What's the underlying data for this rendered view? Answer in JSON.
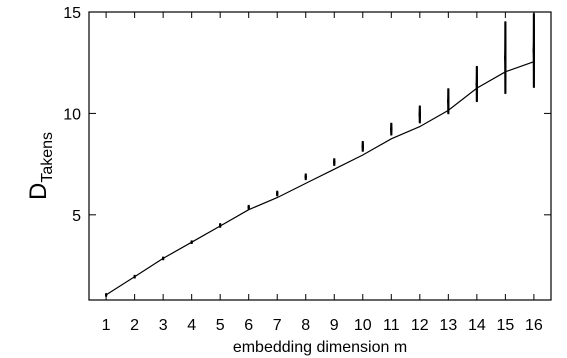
{
  "chart_data": {
    "type": "scatter",
    "xlabel": "embedding dimension m",
    "ylabel_main": "D",
    "ylabel_sub": "Takens",
    "xlim": [
      0.4,
      16.6
    ],
    "ylim": [
      0.8,
      15
    ],
    "x_ticks": [
      1,
      2,
      3,
      4,
      5,
      6,
      7,
      8,
      9,
      10,
      11,
      12,
      13,
      14,
      15,
      16
    ],
    "y_ticks": [
      5,
      10,
      15
    ],
    "grid": false,
    "line": {
      "x": [
        1,
        2,
        3,
        4,
        5,
        6,
        7,
        8,
        9,
        10,
        11,
        12,
        13,
        14,
        15,
        16
      ],
      "y": [
        1.05,
        1.95,
        2.85,
        3.65,
        4.45,
        5.25,
        5.85,
        6.55,
        7.25,
        7.95,
        8.75,
        9.35,
        10.15,
        11.25,
        12.05,
        12.55
      ]
    },
    "point_clusters": [
      {
        "x": 1,
        "ymin": 1.0,
        "ymax": 1.1
      },
      {
        "x": 2,
        "ymin": 1.9,
        "ymax": 2.0
      },
      {
        "x": 3,
        "ymin": 2.8,
        "ymax": 2.9
      },
      {
        "x": 4,
        "ymin": 3.6,
        "ymax": 3.7
      },
      {
        "x": 5,
        "ymin": 4.4,
        "ymax": 4.55
      },
      {
        "x": 6,
        "ymin": 5.3,
        "ymax": 5.45
      },
      {
        "x": 7,
        "ymin": 5.95,
        "ymax": 6.15
      },
      {
        "x": 8,
        "ymin": 6.75,
        "ymax": 7.0
      },
      {
        "x": 9,
        "ymin": 7.45,
        "ymax": 7.75
      },
      {
        "x": 10,
        "ymin": 8.15,
        "ymax": 8.6
      },
      {
        "x": 11,
        "ymin": 8.95,
        "ymax": 9.5
      },
      {
        "x": 12,
        "ymin": 9.55,
        "ymax": 10.35
      },
      {
        "x": 13,
        "ymin": 10.0,
        "ymax": 11.2
      },
      {
        "x": 14,
        "ymin": 10.6,
        "ymax": 12.3
      },
      {
        "x": 15,
        "ymin": 11.0,
        "ymax": 14.5
      },
      {
        "x": 16,
        "ymin": 11.3,
        "ymax": 14.9
      }
    ]
  }
}
